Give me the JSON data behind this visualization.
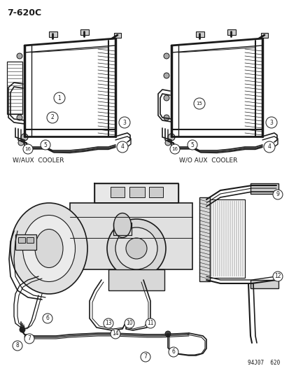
{
  "title": "7-620C",
  "bg_color": "#ffffff",
  "lc": "#1a1a1a",
  "tc": "#1a1a1a",
  "label_top_left": "W/AUX  COOLER",
  "label_top_right": "W/O AUX  COOLER",
  "bottom_right_ref": "94J07  620",
  "figsize": [
    4.14,
    5.33
  ],
  "dpi": 100
}
